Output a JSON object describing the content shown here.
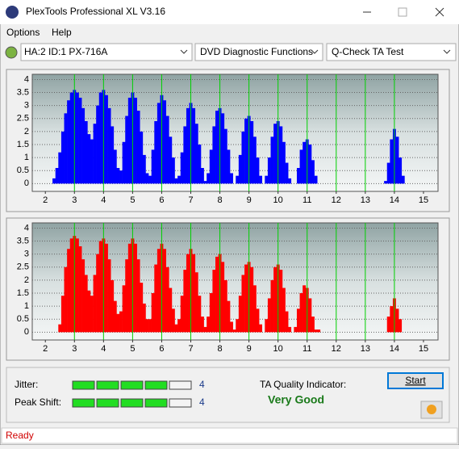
{
  "window": {
    "title": "PlexTools Professional XL V3.16"
  },
  "menu": [
    "Options",
    "Help"
  ],
  "toolbar": {
    "drive": "HA:2 ID:1  PX-716A",
    "function": "DVD Diagnostic Functions",
    "test": "Q-Check TA Test"
  },
  "chart_data": [
    {
      "type": "bar",
      "color": "#0000ff",
      "x": [
        2.3,
        2.4,
        2.5,
        2.6,
        2.7,
        2.8,
        2.9,
        3.0,
        3.1,
        3.2,
        3.3,
        3.4,
        3.5,
        3.6,
        3.7,
        3.8,
        3.9,
        4.0,
        4.1,
        4.2,
        4.3,
        4.4,
        4.5,
        4.6,
        4.7,
        4.8,
        4.9,
        5.0,
        5.1,
        5.2,
        5.3,
        5.4,
        5.5,
        5.6,
        5.7,
        5.8,
        5.9,
        6.0,
        6.1,
        6.2,
        6.3,
        6.4,
        6.5,
        6.6,
        6.7,
        6.8,
        6.9,
        7.0,
        7.1,
        7.2,
        7.3,
        7.4,
        7.5,
        7.6,
        7.7,
        7.8,
        7.9,
        8.0,
        8.1,
        8.2,
        8.3,
        8.4,
        8.5,
        8.6,
        8.7,
        8.8,
        8.9,
        9.0,
        9.1,
        9.2,
        9.3,
        9.4,
        9.5,
        9.6,
        9.7,
        9.8,
        9.9,
        10.0,
        10.1,
        10.2,
        10.3,
        10.4,
        10.5,
        10.6,
        10.7,
        10.8,
        10.9,
        11.0,
        11.1,
        11.2,
        11.3,
        11.4,
        13.7,
        13.8,
        13.9,
        14.0,
        14.1,
        14.2,
        14.3,
        14.4
      ],
      "values": [
        0.2,
        0.6,
        1.2,
        2.0,
        2.7,
        3.2,
        3.5,
        3.6,
        3.5,
        3.3,
        2.9,
        2.4,
        1.9,
        1.7,
        2.3,
        3.0,
        3.5,
        3.6,
        3.4,
        2.9,
        2.2,
        1.3,
        0.6,
        0.5,
        1.6,
        2.6,
        3.3,
        3.5,
        3.3,
        2.8,
        2.0,
        1.1,
        0.4,
        0.3,
        1.3,
        2.4,
        3.1,
        3.4,
        3.2,
        2.6,
        1.8,
        1.0,
        0.2,
        0.3,
        1.2,
        2.2,
        2.9,
        3.1,
        2.9,
        2.3,
        1.5,
        0.6,
        0.1,
        0.4,
        1.3,
        2.2,
        2.8,
        2.9,
        2.7,
        2.1,
        1.3,
        0.4,
        0,
        0.3,
        1.1,
        2.0,
        2.5,
        2.6,
        2.4,
        1.8,
        1.0,
        0.3,
        0,
        0.3,
        1.0,
        1.8,
        2.3,
        2.4,
        2.2,
        1.6,
        0.8,
        0.2,
        0,
        0,
        0.6,
        1.3,
        1.6,
        1.7,
        1.5,
        0.9,
        0.3,
        0,
        0.1,
        0.8,
        1.7,
        2.1,
        1.8,
        1.0,
        0.3,
        0
      ],
      "xlim": [
        1.55,
        15.5
      ],
      "ylim": [
        -0.3,
        4.2
      ],
      "xticks": [
        2,
        3,
        4,
        5,
        6,
        7,
        8,
        9,
        10,
        11,
        12,
        13,
        14,
        15
      ],
      "yticks": [
        0,
        0.5,
        1,
        1.5,
        2,
        2.5,
        3,
        3.5,
        4
      ],
      "marker_x": [
        3,
        4,
        5,
        6,
        7,
        8,
        9,
        10,
        11,
        12,
        13,
        14
      ],
      "marker_color": "#00d000"
    },
    {
      "type": "bar",
      "color": "#ff0000",
      "x": [
        2.5,
        2.6,
        2.7,
        2.8,
        2.9,
        3.0,
        3.1,
        3.2,
        3.3,
        3.4,
        3.5,
        3.6,
        3.7,
        3.8,
        3.9,
        4.0,
        4.1,
        4.2,
        4.3,
        4.4,
        4.5,
        4.6,
        4.7,
        4.8,
        4.9,
        5.0,
        5.1,
        5.2,
        5.3,
        5.4,
        5.5,
        5.6,
        5.7,
        5.8,
        5.9,
        6.0,
        6.1,
        6.2,
        6.3,
        6.4,
        6.5,
        6.6,
        6.7,
        6.8,
        6.9,
        7.0,
        7.1,
        7.2,
        7.3,
        7.4,
        7.5,
        7.6,
        7.7,
        7.8,
        7.9,
        8.0,
        8.1,
        8.2,
        8.3,
        8.4,
        8.5,
        8.6,
        8.7,
        8.8,
        8.9,
        9.0,
        9.1,
        9.2,
        9.3,
        9.4,
        9.5,
        9.6,
        9.7,
        9.8,
        9.9,
        10.0,
        10.1,
        10.2,
        10.3,
        10.4,
        10.5,
        10.6,
        10.7,
        10.8,
        10.9,
        11.0,
        11.1,
        11.2,
        11.3,
        11.4,
        13.8,
        13.9,
        14.0,
        14.1,
        14.2
      ],
      "values": [
        0.3,
        1.4,
        2.5,
        3.2,
        3.6,
        3.7,
        3.6,
        3.3,
        2.8,
        2.2,
        1.6,
        1.4,
        2.2,
        3.0,
        3.5,
        3.6,
        3.4,
        2.8,
        2.0,
        1.2,
        0.7,
        0.8,
        1.8,
        2.8,
        3.4,
        3.6,
        3.4,
        2.8,
        1.9,
        1.1,
        0.5,
        0.5,
        1.5,
        2.6,
        3.2,
        3.4,
        3.2,
        2.5,
        1.7,
        0.9,
        0.3,
        0.5,
        1.4,
        2.4,
        3.0,
        3.2,
        3.0,
        2.3,
        1.4,
        0.6,
        0.2,
        0.6,
        1.5,
        2.4,
        2.9,
        3.0,
        2.7,
        2.0,
        1.2,
        0.4,
        0.1,
        0.5,
        1.4,
        2.2,
        2.6,
        2.7,
        2.5,
        1.8,
        0.9,
        0.3,
        0,
        0.5,
        1.3,
        2.0,
        2.5,
        2.6,
        2.4,
        1.7,
        0.8,
        0.2,
        0,
        0.2,
        0.9,
        1.5,
        1.8,
        1.7,
        1.3,
        0.6,
        0.1,
        0.1,
        0.6,
        1.0,
        1.3,
        0.9,
        0.5
      ],
      "xlim": [
        1.55,
        15.5
      ],
      "ylim": [
        -0.3,
        4.2
      ],
      "xticks": [
        2,
        3,
        4,
        5,
        6,
        7,
        8,
        9,
        10,
        11,
        12,
        13,
        14,
        15
      ],
      "yticks": [
        0,
        0.5,
        1,
        1.5,
        2,
        2.5,
        3,
        3.5,
        4
      ],
      "marker_x": [
        3,
        4,
        5,
        6,
        7,
        8,
        9,
        10,
        11,
        12,
        13,
        14
      ],
      "marker_color": "#00d000"
    }
  ],
  "results": {
    "jitter": {
      "label": "Jitter:",
      "value": 4,
      "segments": 5
    },
    "peak_shift": {
      "label": "Peak Shift:",
      "value": 4,
      "segments": 5
    },
    "quality_label": "TA Quality Indicator:",
    "quality": "Very Good",
    "start": "Start"
  },
  "status": "Ready"
}
